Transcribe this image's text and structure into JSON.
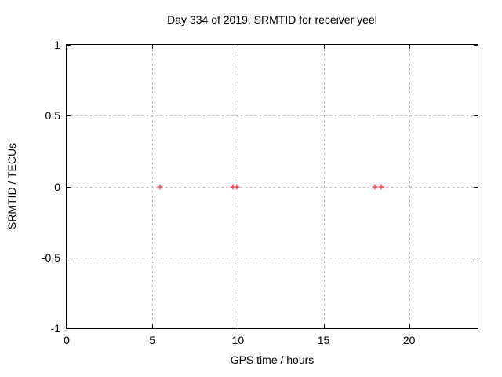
{
  "window": {
    "background": "#ffffff"
  },
  "colors": {
    "grid": "#b0b0b0",
    "border": "#000000",
    "text": "#000000",
    "marker": "#ff0000"
  },
  "chart_data": {
    "type": "scatter",
    "title": "Day 334 of 2019, SRMTID for receiver yeel",
    "xlabel": "GPS time / hours",
    "ylabel": "SRMTID / TECUs",
    "xlim": [
      0,
      24
    ],
    "ylim": [
      -1,
      1
    ],
    "grid": true,
    "legend": "none",
    "xticks": {
      "values": [
        0,
        5,
        10,
        15,
        20
      ],
      "labels": [
        "0",
        "5",
        "10",
        "15",
        "20"
      ]
    },
    "yticks": {
      "values": [
        1,
        0.5,
        0,
        -0.5,
        -1
      ],
      "labels": [
        "1",
        "0.5",
        "0",
        "-0.5",
        "-1"
      ]
    },
    "series": [
      {
        "name": "SRMTID",
        "marker": "plus",
        "color": "#ff0000",
        "points": [
          {
            "x": 5.44,
            "y": 0
          },
          {
            "x": 9.7,
            "y": 0
          },
          {
            "x": 9.93,
            "y": 0
          },
          {
            "x": 17.99,
            "y": 0
          },
          {
            "x": 18.37,
            "y": 0
          }
        ]
      }
    ]
  }
}
